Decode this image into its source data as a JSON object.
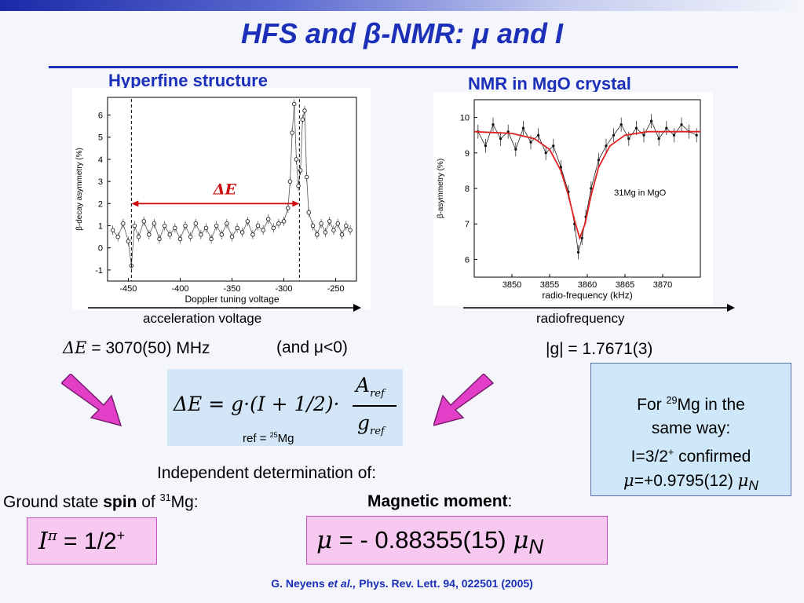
{
  "slide": {
    "title": "HFS and β-NMR: μ and I",
    "colors": {
      "title_blue": "#1c2fb8",
      "pink_arrow": "#e23ec8",
      "fit_red": "#e02020",
      "box_blue": "#d3e6f7",
      "box_pink": "#f7c8f0"
    }
  },
  "hfs": {
    "panel_title": "Hyperfine structure",
    "arrow_caption": "acceleration voltage",
    "result_text": "= 3070(50) MHz",
    "result_symbol": "ΔE",
    "sign_note": "(and μ<0)",
    "delta_label": "ΔE",
    "chart_data": {
      "type": "scatter",
      "xlabel": "Doppler tuning voltage",
      "ylabel": "β-decay asymmetry (%)",
      "xlim": [
        -470,
        -230
      ],
      "ylim": [
        -1.5,
        6.8
      ],
      "xticks": [
        "-450",
        "-400",
        "-350",
        "-300",
        "-250"
      ],
      "yticks": [
        "-1",
        "0",
        "1",
        "2",
        "3",
        "4",
        "5",
        "6"
      ],
      "series": [
        {
          "points": [
            {
              "x": -465,
              "y": 0.8
            },
            {
              "x": -460,
              "y": 0.5
            },
            {
              "x": -455,
              "y": 1.1
            },
            {
              "x": -450,
              "y": 0.3
            },
            {
              "x": -447,
              "y": -0.8
            },
            {
              "x": -444,
              "y": 1.0
            },
            {
              "x": -440,
              "y": 0.5
            },
            {
              "x": -435,
              "y": 1.2
            },
            {
              "x": -430,
              "y": 0.6
            },
            {
              "x": -425,
              "y": 1.1
            },
            {
              "x": -420,
              "y": 0.4
            },
            {
              "x": -415,
              "y": 1.0
            },
            {
              "x": -410,
              "y": 0.6
            },
            {
              "x": -405,
              "y": 0.9
            },
            {
              "x": -400,
              "y": 0.4
            },
            {
              "x": -395,
              "y": 1.0
            },
            {
              "x": -390,
              "y": 0.5
            },
            {
              "x": -385,
              "y": 1.1
            },
            {
              "x": -380,
              "y": 0.6
            },
            {
              "x": -375,
              "y": 0.9
            },
            {
              "x": -370,
              "y": 0.4
            },
            {
              "x": -365,
              "y": 1.0
            },
            {
              "x": -360,
              "y": 0.6
            },
            {
              "x": -355,
              "y": 1.1
            },
            {
              "x": -350,
              "y": 0.5
            },
            {
              "x": -345,
              "y": 0.9
            },
            {
              "x": -340,
              "y": 0.7
            },
            {
              "x": -335,
              "y": 1.2
            },
            {
              "x": -330,
              "y": 0.6
            },
            {
              "x": -325,
              "y": 1.0
            },
            {
              "x": -320,
              "y": 0.8
            },
            {
              "x": -315,
              "y": 1.3
            },
            {
              "x": -310,
              "y": 0.9
            },
            {
              "x": -305,
              "y": 1.1
            },
            {
              "x": -300,
              "y": 1.2
            },
            {
              "x": -296,
              "y": 1.8
            },
            {
              "x": -294,
              "y": 3.0
            },
            {
              "x": -292,
              "y": 5.2
            },
            {
              "x": -290,
              "y": 6.5
            },
            {
              "x": -288,
              "y": 4.0
            },
            {
              "x": -286,
              "y": 2.8
            },
            {
              "x": -284,
              "y": 3.5
            },
            {
              "x": -282,
              "y": 5.8
            },
            {
              "x": -280,
              "y": 6.2
            },
            {
              "x": -278,
              "y": 3.2
            },
            {
              "x": -276,
              "y": 1.6
            },
            {
              "x": -272,
              "y": 1.0
            },
            {
              "x": -268,
              "y": 0.6
            },
            {
              "x": -264,
              "y": 1.1
            },
            {
              "x": -260,
              "y": 0.7
            },
            {
              "x": -256,
              "y": 1.2
            },
            {
              "x": -252,
              "y": 0.8
            },
            {
              "x": -248,
              "y": 1.1
            },
            {
              "x": -244,
              "y": 0.6
            },
            {
              "x": -240,
              "y": 1.0
            },
            {
              "x": -236,
              "y": 0.8
            }
          ]
        }
      ]
    }
  },
  "nmr": {
    "panel_title": "NMR in MgO crystal",
    "arrow_caption": "radiofrequency",
    "result_text": "|g| = 1.7671(3)",
    "chart_data": {
      "type": "line",
      "xlabel": "radio-frequency (kHz)",
      "ylabel": "β-asymmetry (%)",
      "annotation": "31Mg in MgO",
      "xlim": [
        3845,
        3875
      ],
      "ylim": [
        5.5,
        10.5
      ],
      "xticks": [
        "3850",
        "3855",
        "3860",
        "3865",
        "3870"
      ],
      "yticks": [
        "6",
        "7",
        "8",
        "9",
        "10"
      ],
      "series": [
        {
          "kind": "data",
          "points": [
            {
              "x": 3845.5,
              "y": 9.6
            },
            {
              "x": 3846.5,
              "y": 9.2
            },
            {
              "x": 3847.5,
              "y": 9.8
            },
            {
              "x": 3848.5,
              "y": 9.4
            },
            {
              "x": 3849.5,
              "y": 9.6
            },
            {
              "x": 3850.5,
              "y": 9.1
            },
            {
              "x": 3851.5,
              "y": 9.7
            },
            {
              "x": 3852.5,
              "y": 9.3
            },
            {
              "x": 3853.5,
              "y": 9.5
            },
            {
              "x": 3854.5,
              "y": 9.0
            },
            {
              "x": 3855.5,
              "y": 9.2
            },
            {
              "x": 3856.5,
              "y": 8.6
            },
            {
              "x": 3857.5,
              "y": 7.9
            },
            {
              "x": 3858.3,
              "y": 7.0
            },
            {
              "x": 3858.8,
              "y": 6.2
            },
            {
              "x": 3859.3,
              "y": 6.6
            },
            {
              "x": 3859.8,
              "y": 7.2
            },
            {
              "x": 3860.5,
              "y": 8.0
            },
            {
              "x": 3861.5,
              "y": 8.8
            },
            {
              "x": 3862.5,
              "y": 9.2
            },
            {
              "x": 3863.5,
              "y": 9.5
            },
            {
              "x": 3864.5,
              "y": 9.8
            },
            {
              "x": 3865.5,
              "y": 9.4
            },
            {
              "x": 3866.5,
              "y": 9.7
            },
            {
              "x": 3867.5,
              "y": 9.5
            },
            {
              "x": 3868.5,
              "y": 9.9
            },
            {
              "x": 3869.5,
              "y": 9.4
            },
            {
              "x": 3870.5,
              "y": 9.7
            },
            {
              "x": 3871.5,
              "y": 9.5
            },
            {
              "x": 3872.5,
              "y": 9.8
            },
            {
              "x": 3873.5,
              "y": 9.6
            },
            {
              "x": 3874.5,
              "y": 9.5
            }
          ]
        },
        {
          "kind": "fit",
          "points": [
            {
              "x": 3845,
              "y": 9.6
            },
            {
              "x": 3850,
              "y": 9.55
            },
            {
              "x": 3853,
              "y": 9.4
            },
            {
              "x": 3855,
              "y": 9.1
            },
            {
              "x": 3856.5,
              "y": 8.5
            },
            {
              "x": 3857.5,
              "y": 7.8
            },
            {
              "x": 3858.3,
              "y": 7.1
            },
            {
              "x": 3859,
              "y": 6.6
            },
            {
              "x": 3859.7,
              "y": 7.0
            },
            {
              "x": 3860.5,
              "y": 7.8
            },
            {
              "x": 3861.5,
              "y": 8.6
            },
            {
              "x": 3863,
              "y": 9.2
            },
            {
              "x": 3865,
              "y": 9.5
            },
            {
              "x": 3868,
              "y": 9.6
            },
            {
              "x": 3875,
              "y": 9.6
            }
          ]
        }
      ]
    }
  },
  "formula": {
    "lhs": "ΔE = g·(I + 1/2)·",
    "numerator": "A",
    "denominator": "g",
    "subscript": "ref",
    "ref_note": "ref = ",
    "ref_isotope_mass": "25",
    "ref_isotope": "Mg"
  },
  "mg29_box": {
    "line1_pre": "For ",
    "line1_mass": "29",
    "line1_post": "Mg in the",
    "line2": "same way:",
    "line3_pre": "I=3/2",
    "line3_sup": "+",
    "line3_post": " confirmed",
    "line4_mu": "μ",
    "line4_value": "=+0.9795(12) ",
    "line4_unit": "μ",
    "line4_sub": "N"
  },
  "conclusion": {
    "heading": "Independent determination of:",
    "spin_pre": "Ground state ",
    "spin_bold": "spin",
    "spin_mid": " of ",
    "spin_mass": "31",
    "spin_post": "Mg:",
    "moment_bold": "Magnetic moment",
    "moment_post": ":",
    "spin_result_symbol": "I",
    "spin_result_sup": "π",
    "spin_result_value": " = 1/2",
    "spin_result_parity": "+",
    "moment_result_symbol": "μ",
    "moment_result_value": " = - 0.88355(15) ",
    "moment_result_unit": "μ",
    "moment_result_sub": "N"
  },
  "reference": {
    "pre": "G. Neyens ",
    "italic": "et al.,",
    "post": " Phys. Rev. Lett. 94, 022501 (2005)"
  }
}
